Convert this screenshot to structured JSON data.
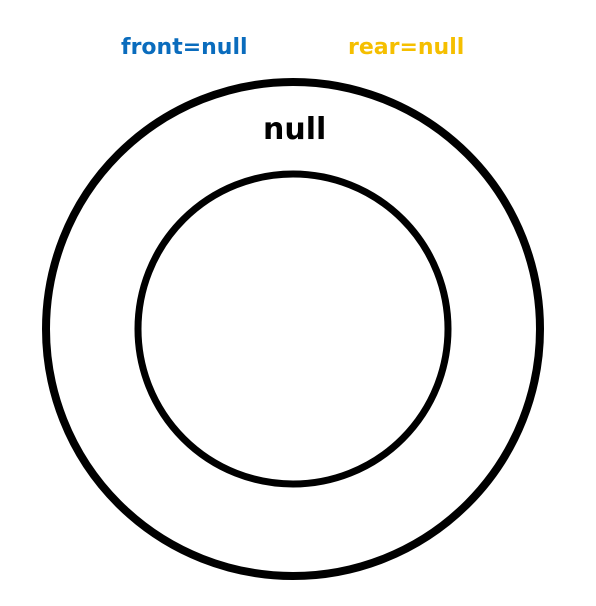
{
  "pointers": {
    "front": "front=null",
    "rear": "rear=null"
  },
  "buffer": {
    "slot_text": "null"
  },
  "colors": {
    "front": "#0a6cbd",
    "rear": "#f5bf00",
    "ring_stroke": "#000000"
  }
}
